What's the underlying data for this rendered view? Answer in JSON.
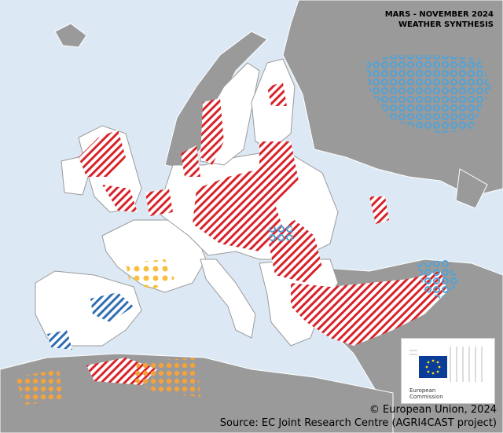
{
  "title": {
    "line1": "MARS - NOVEMBER 2024",
    "line2": "WEATHER SYNTHESIS"
  },
  "logo": {
    "lines": [
      "European",
      "Commission"
    ]
  },
  "credits": {
    "copyright": "© European Union, 2024",
    "source": "Source: EC Joint Research Centre (AGRI4CAST project)"
  }
}
